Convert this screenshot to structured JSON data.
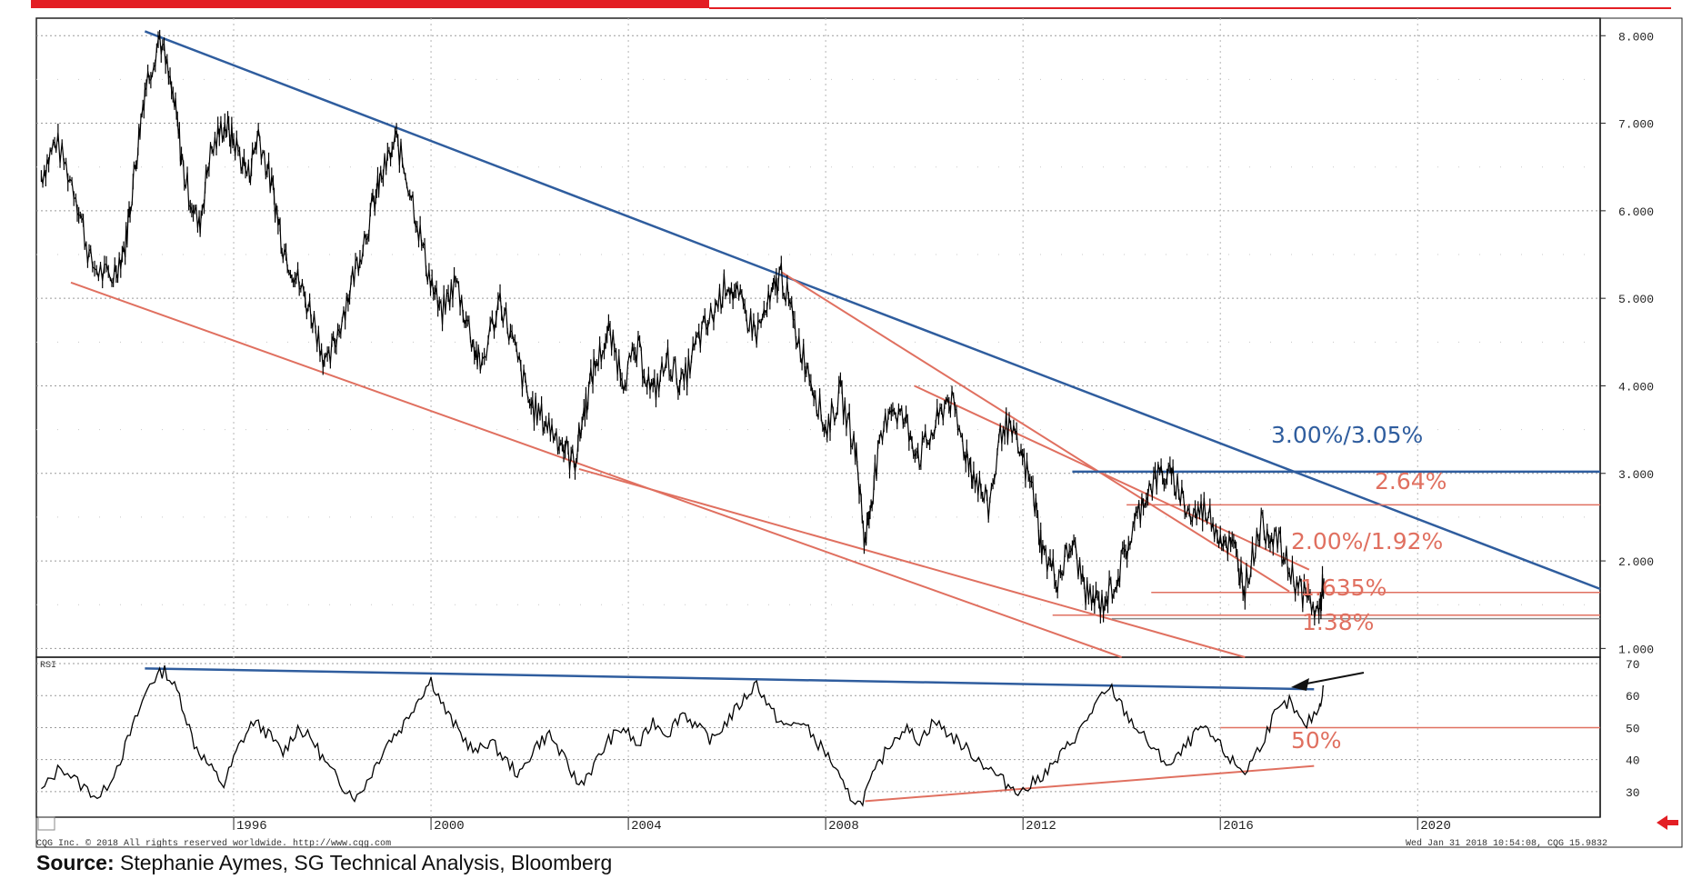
{
  "source": {
    "label": "Source:",
    "text": "Stephanie Aymes, SG Technical Analysis, Bloomberg"
  },
  "footer": {
    "left": "CQG Inc. © 2018 All rights reserved worldwide. http://www.cqg.com",
    "right": "Wed Jan 31 2018 10:54:08, CQG 15.9832"
  },
  "colors": {
    "trend_blue": "#2f5d9e",
    "trend_red": "#e07060",
    "header_red": "#e31e24",
    "price_bars": "#000000",
    "rsi_line": "#000000"
  },
  "chart_data": [
    {
      "type": "line",
      "panel": "price",
      "ylim": [
        0.9,
        8.2
      ],
      "xlim": [
        1992.0,
        2023.7
      ],
      "y_ticks": [
        "8.000",
        "7.000",
        "6.000",
        "5.000",
        "4.000",
        "3.000",
        "2.000",
        "1.000"
      ],
      "x_ticks": [
        "1996",
        "2000",
        "2004",
        "2008",
        "2012",
        "2016",
        "2020"
      ],
      "grid": true,
      "series": [
        {
          "x": [
            1992.1,
            1992.4,
            1992.8,
            1993.1,
            1993.5,
            1993.8,
            1994.0,
            1994.2,
            1994.5,
            1994.8,
            1995.0,
            1995.3,
            1995.5,
            1995.8,
            1996.0,
            1996.3,
            1996.5,
            1996.8,
            1997.0,
            1997.3,
            1997.6,
            1997.9,
            1998.2,
            1998.5,
            1998.8,
            1999.0,
            1999.3,
            1999.6,
            1999.9,
            2000.2,
            2000.5,
            2000.8,
            2001.0,
            2001.4,
            2001.7,
            2002.0,
            2002.3,
            2002.6,
            2002.9,
            2003.1,
            2003.3,
            2003.6,
            2003.9,
            2004.2,
            2004.5,
            2004.8,
            2005.1,
            2005.4,
            2005.7,
            2006.0,
            2006.3,
            2006.6,
            2006.9,
            2007.1,
            2007.4,
            2007.7,
            2008.0,
            2008.3,
            2008.6,
            2008.8,
            2009.0,
            2009.3,
            2009.6,
            2009.9,
            2010.2,
            2010.5,
            2010.8,
            2011.0,
            2011.3,
            2011.6,
            2011.9,
            2012.2,
            2012.4,
            2012.7,
            2013.0,
            2013.3,
            2013.6,
            2013.9,
            2014.2,
            2014.5,
            2014.8,
            2015.1,
            2015.4,
            2015.7,
            2016.0,
            2016.3,
            2016.5,
            2016.8,
            2017.1,
            2017.4,
            2017.7,
            2018.0,
            2018.1
          ],
          "y": [
            6.4,
            6.8,
            6.2,
            5.4,
            5.2,
            5.6,
            6.5,
            7.4,
            8.0,
            7.2,
            6.4,
            5.8,
            6.6,
            7.0,
            6.8,
            6.4,
            6.9,
            6.2,
            5.6,
            5.2,
            4.8,
            4.2,
            4.8,
            5.4,
            6.0,
            6.4,
            6.8,
            6.2,
            5.4,
            4.8,
            5.2,
            4.6,
            4.2,
            5.0,
            4.4,
            3.8,
            3.6,
            3.4,
            3.1,
            3.7,
            4.2,
            4.6,
            4.1,
            4.4,
            3.9,
            4.3,
            4.0,
            4.5,
            4.8,
            5.2,
            4.9,
            4.6,
            5.0,
            5.3,
            4.6,
            4.1,
            3.5,
            3.9,
            3.3,
            2.2,
            3.0,
            3.8,
            3.6,
            3.2,
            3.5,
            3.9,
            3.3,
            3.0,
            2.6,
            3.6,
            3.3,
            2.8,
            2.1,
            1.8,
            2.2,
            1.6,
            1.5,
            1.8,
            2.3,
            2.8,
            3.0,
            2.9,
            2.5,
            2.6,
            2.3,
            2.1,
            1.7,
            2.4,
            2.3,
            1.9,
            1.6,
            1.4,
            1.8
          ]
        }
      ],
      "annotations": [
        "3.00%/3.05%",
        "2.64%",
        "2.00%/1.92%",
        "1.635%",
        "1.38%"
      ]
    },
    {
      "type": "line",
      "panel": "rsi",
      "label": "RSI",
      "ylim": [
        22,
        72
      ],
      "y_ticks": [
        "70",
        "60",
        "50",
        "40",
        "30"
      ],
      "series": [
        {
          "x": [
            1992.1,
            1992.5,
            1992.9,
            1993.3,
            1993.7,
            1994.0,
            1994.3,
            1994.6,
            1994.9,
            1995.2,
            1995.5,
            1995.8,
            1996.1,
            1996.4,
            1996.7,
            1997.0,
            1997.3,
            1997.6,
            1997.9,
            1998.2,
            1998.5,
            1998.8,
            1999.1,
            1999.4,
            1999.7,
            2000.0,
            2000.3,
            2000.6,
            2000.9,
            2001.2,
            2001.5,
            2001.8,
            2002.1,
            2002.4,
            2002.7,
            2003.0,
            2003.3,
            2003.6,
            2003.9,
            2004.2,
            2004.5,
            2004.8,
            2005.1,
            2005.4,
            2005.7,
            2006.0,
            2006.3,
            2006.6,
            2006.9,
            2007.2,
            2007.5,
            2007.8,
            2008.1,
            2008.4,
            2008.7,
            2009.0,
            2009.3,
            2009.6,
            2009.9,
            2010.2,
            2010.5,
            2010.8,
            2011.1,
            2011.4,
            2011.7,
            2012.0,
            2012.3,
            2012.6,
            2012.9,
            2013.2,
            2013.5,
            2013.8,
            2014.1,
            2014.4,
            2014.7,
            2015.0,
            2015.3,
            2015.6,
            2015.9,
            2016.2,
            2016.5,
            2016.8,
            2017.1,
            2017.4,
            2017.7,
            2018.0,
            2018.1
          ],
          "y": [
            30,
            38,
            32,
            28,
            40,
            52,
            64,
            68,
            60,
            45,
            38,
            32,
            44,
            52,
            48,
            42,
            50,
            46,
            38,
            32,
            28,
            36,
            45,
            50,
            58,
            65,
            55,
            48,
            42,
            46,
            40,
            35,
            44,
            48,
            40,
            32,
            38,
            46,
            50,
            44,
            52,
            48,
            55,
            50,
            46,
            52,
            58,
            64,
            55,
            50,
            52,
            46,
            40,
            30,
            26,
            36,
            45,
            50,
            46,
            52,
            48,
            44,
            40,
            36,
            32,
            30,
            34,
            38,
            44,
            50,
            58,
            62,
            54,
            48,
            42,
            38,
            44,
            50,
            46,
            40,
            36,
            44,
            54,
            58,
            50,
            56,
            63
          ]
        }
      ],
      "annotations": [
        "50%"
      ]
    }
  ]
}
